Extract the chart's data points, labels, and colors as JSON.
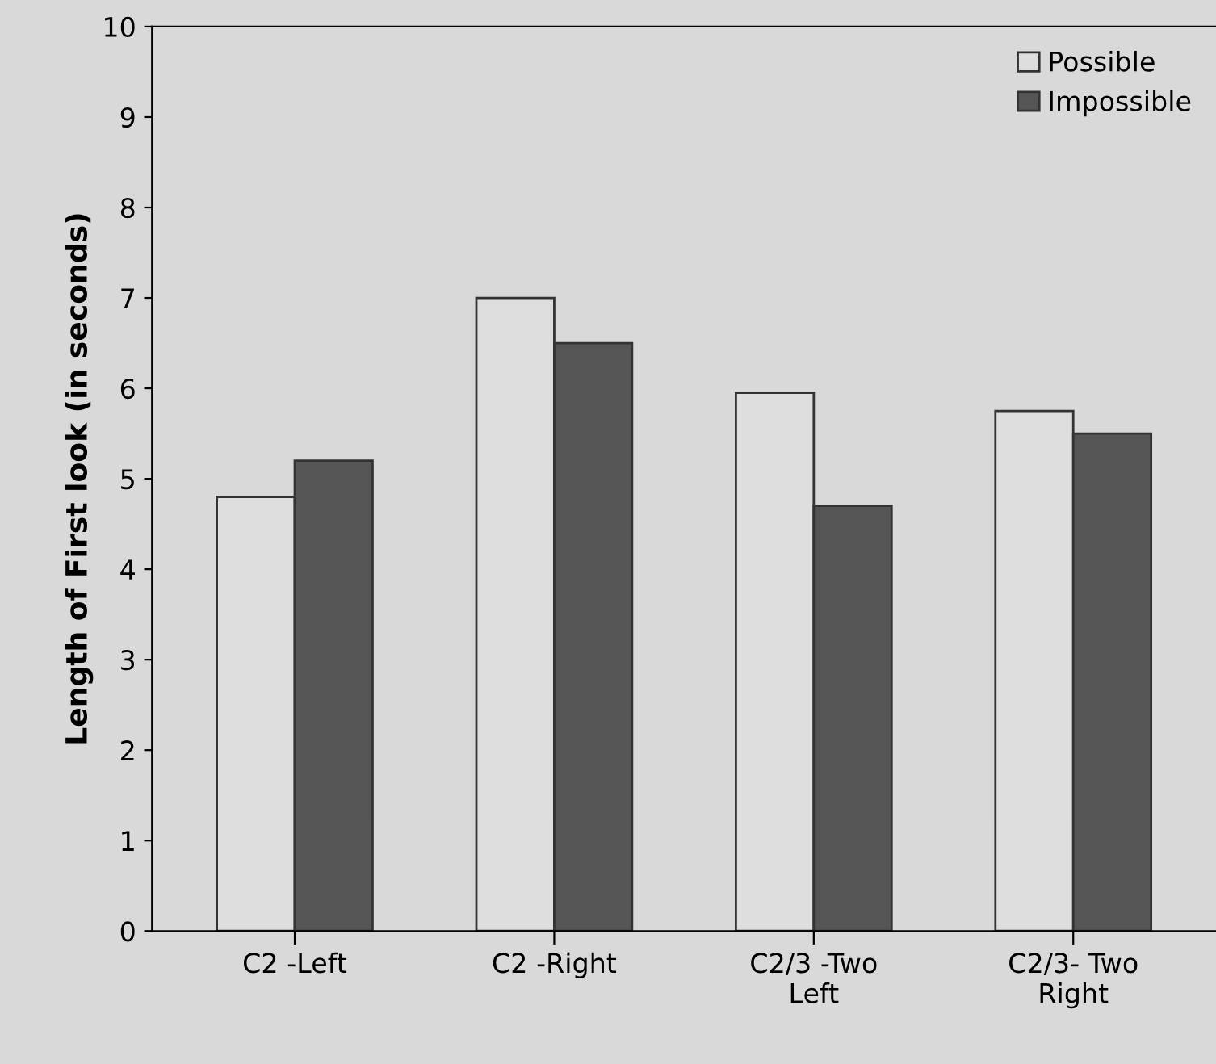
{
  "chart_data": {
    "type": "bar",
    "ylabel": "Length of First look (in seconds)",
    "categories": [
      "C2 -Left",
      "C2 -Right",
      "C2/3 -Two\nLeft",
      "C2/3- Two\nRight"
    ],
    "series": [
      {
        "name": "Possible",
        "color": "#dedede",
        "values": [
          4.8,
          7.0,
          5.95,
          5.75
        ]
      },
      {
        "name": "Impossible",
        "color": "#555555",
        "values": [
          5.2,
          6.5,
          4.7,
          5.5
        ]
      }
    ],
    "ylim": [
      0,
      10
    ],
    "yticks": [
      0,
      1,
      2,
      3,
      4,
      5,
      6,
      7,
      8,
      9,
      10
    ],
    "grid": false,
    "legend": "top right"
  }
}
